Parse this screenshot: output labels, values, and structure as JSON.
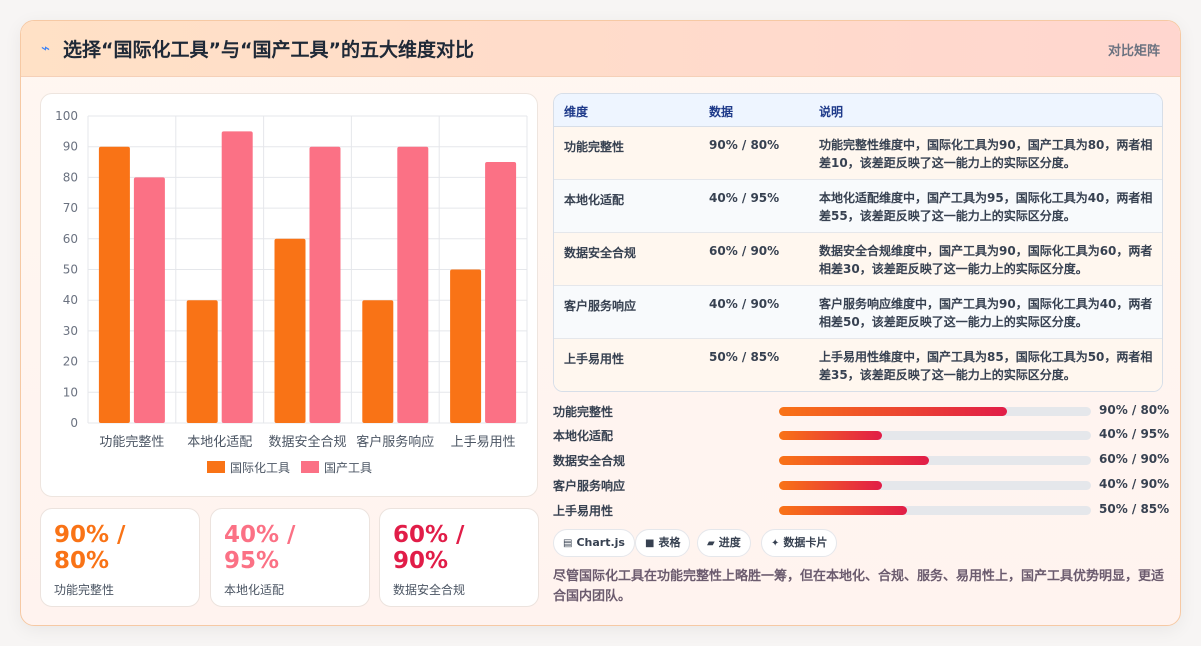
{
  "header": {
    "title": "选择“国际化工具”与“国产工具”的五大维度对比",
    "tag": "对比矩阵"
  },
  "chart_data": {
    "type": "bar",
    "categories": [
      "功能完整性",
      "本地化适配",
      "数据安全合规",
      "客户服务响应",
      "上手易用性"
    ],
    "series": [
      {
        "name": "国际化工具",
        "values": [
          90,
          40,
          60,
          40,
          50
        ],
        "color": "#f97316"
      },
      {
        "name": "国产工具",
        "values": [
          80,
          95,
          90,
          90,
          85
        ],
        "color": "#fb7185"
      }
    ],
    "yticks": [
      0,
      10,
      20,
      30,
      40,
      50,
      60,
      70,
      80,
      90,
      100
    ],
    "ylim": [
      0,
      100
    ],
    "grid": true,
    "legend": "bottom"
  },
  "stats": [
    {
      "value": "90% / 80%",
      "label": "功能完整性",
      "color": "#f97316"
    },
    {
      "value": "40% / 95%",
      "label": "本地化适配",
      "color": "#fb7185"
    },
    {
      "value": "60% / 90%",
      "label": "数据安全合规",
      "color": "#e11d48"
    }
  ],
  "table": {
    "headers": [
      "维度",
      "数据",
      "说明"
    ],
    "rows": [
      {
        "dim": "功能完整性",
        "val": "90% / 80%",
        "desc": "功能完整性维度中，国际化工具为90，国产工具为80，两者相差10，该差距反映了这一能力上的实际区分度。"
      },
      {
        "dim": "本地化适配",
        "val": "40% / 95%",
        "desc": "本地化适配维度中，国产工具为95，国际化工具为40，两者相差55，该差距反映了这一能力上的实际区分度。"
      },
      {
        "dim": "数据安全合规",
        "val": "60% / 90%",
        "desc": "数据安全合规维度中，国产工具为90，国际化工具为60，两者相差30，该差距反映了这一能力上的实际区分度。"
      },
      {
        "dim": "客户服务响应",
        "val": "40% / 90%",
        "desc": "客户服务响应维度中，国产工具为90，国际化工具为40，两者相差50，该差距反映了这一能力上的实际区分度。"
      },
      {
        "dim": "上手易用性",
        "val": "50% / 85%",
        "desc": "上手易用性维度中，国产工具为85，国际化工具为50，两者相差35，该差距反映了这一能力上的实际区分度。"
      }
    ]
  },
  "progress": [
    {
      "label": "功能完整性",
      "value": "90% / 80%",
      "fill": 0.73
    },
    {
      "label": "本地化适配",
      "value": "40% / 95%",
      "fill": 0.33
    },
    {
      "label": "数据安全合规",
      "value": "60% / 90%",
      "fill": 0.48
    },
    {
      "label": "客户服务响应",
      "value": "40% / 90%",
      "fill": 0.33
    },
    {
      "label": "上手易用性",
      "value": "50% / 85%",
      "fill": 0.41
    }
  ],
  "chips": [
    {
      "icon": "▤",
      "label": "Chart.js"
    },
    {
      "icon": "■",
      "label": "表格"
    },
    {
      "icon": "▰",
      "label": "进度"
    },
    {
      "icon": "✦",
      "label": "数据卡片"
    }
  ],
  "summary": "尽管国际化工具在功能完整性上略胜一筹，但在本地化、合规、服务、易用性上，国产工具优势明显，更适合国内团队。"
}
